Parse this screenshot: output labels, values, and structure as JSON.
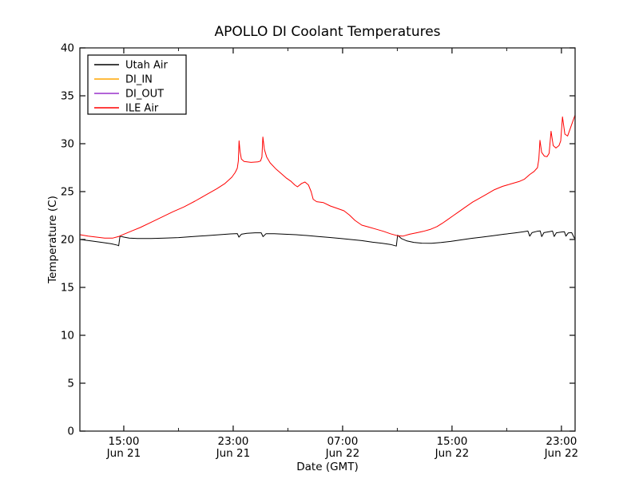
{
  "chart_data": {
    "type": "line",
    "title": "APOLLO DI Coolant Temperatures",
    "xlabel": "Date (GMT)",
    "ylabel": "Temperature (C)",
    "xlim": [
      11.79,
      48.0
    ],
    "ylim": [
      0,
      40
    ],
    "grid": false,
    "background": "#ffffff",
    "spine_color": "#1a1a1a",
    "x_unit": "hours from Jun 21 00:00 GMT",
    "x_ticks": [
      {
        "t": 15,
        "label": "15:00",
        "sub": "Jun 21"
      },
      {
        "t": 23,
        "label": "23:00",
        "sub": "Jun 21"
      },
      {
        "t": 31,
        "label": "07:00",
        "sub": "Jun 22"
      },
      {
        "t": 39,
        "label": "15:00",
        "sub": "Jun 22"
      },
      {
        "t": 47,
        "label": "23:00",
        "sub": "Jun 22"
      }
    ],
    "x_minor_ticks": [
      19,
      27,
      35,
      43
    ],
    "y_ticks": [
      0,
      5,
      10,
      15,
      20,
      25,
      30,
      35,
      40
    ],
    "legend": {
      "position": "upper-left",
      "entries": [
        {
          "label": "Utah Air",
          "color": "#000000"
        },
        {
          "label": "DI_IN",
          "color": "#ffa500"
        },
        {
          "label": "DI_OUT",
          "color": "#9932cc"
        },
        {
          "label": "ILE Air",
          "color": "#ff0000"
        }
      ]
    },
    "series": [
      {
        "name": "Utah Air",
        "color": "#000000",
        "points": [
          [
            11.8,
            20.0
          ],
          [
            12.6,
            19.85
          ],
          [
            13.4,
            19.7
          ],
          [
            14.1,
            19.55
          ],
          [
            14.55,
            19.4
          ],
          [
            14.63,
            19.35
          ],
          [
            14.72,
            20.35
          ],
          [
            15.0,
            20.25
          ],
          [
            15.4,
            20.15
          ],
          [
            16.0,
            20.1
          ],
          [
            17.0,
            20.1
          ],
          [
            18.0,
            20.15
          ],
          [
            19.0,
            20.2
          ],
          [
            20.0,
            20.3
          ],
          [
            21.0,
            20.4
          ],
          [
            22.0,
            20.5
          ],
          [
            22.8,
            20.58
          ],
          [
            23.3,
            20.62
          ],
          [
            23.42,
            20.25
          ],
          [
            23.6,
            20.55
          ],
          [
            24.0,
            20.65
          ],
          [
            24.6,
            20.7
          ],
          [
            25.05,
            20.7
          ],
          [
            25.18,
            20.3
          ],
          [
            25.4,
            20.6
          ],
          [
            26.0,
            20.6
          ],
          [
            26.8,
            20.55
          ],
          [
            27.6,
            20.5
          ],
          [
            28.4,
            20.42
          ],
          [
            29.2,
            20.32
          ],
          [
            30.0,
            20.22
          ],
          [
            30.8,
            20.12
          ],
          [
            31.6,
            20.0
          ],
          [
            32.4,
            19.88
          ],
          [
            33.2,
            19.72
          ],
          [
            33.9,
            19.6
          ],
          [
            34.5,
            19.48
          ],
          [
            34.93,
            19.32
          ],
          [
            35.02,
            20.45
          ],
          [
            35.3,
            20.1
          ],
          [
            35.7,
            19.85
          ],
          [
            36.2,
            19.7
          ],
          [
            36.8,
            19.62
          ],
          [
            37.5,
            19.6
          ],
          [
            38.2,
            19.68
          ],
          [
            38.9,
            19.8
          ],
          [
            39.6,
            19.95
          ],
          [
            40.4,
            20.12
          ],
          [
            41.2,
            20.25
          ],
          [
            42.0,
            20.4
          ],
          [
            42.8,
            20.55
          ],
          [
            43.6,
            20.68
          ],
          [
            44.2,
            20.8
          ],
          [
            44.55,
            20.88
          ],
          [
            44.68,
            20.35
          ],
          [
            44.85,
            20.72
          ],
          [
            45.2,
            20.85
          ],
          [
            45.45,
            20.9
          ],
          [
            45.56,
            20.3
          ],
          [
            45.72,
            20.72
          ],
          [
            46.1,
            20.82
          ],
          [
            46.35,
            20.88
          ],
          [
            46.47,
            20.32
          ],
          [
            46.63,
            20.7
          ],
          [
            47.0,
            20.78
          ],
          [
            47.22,
            20.82
          ],
          [
            47.33,
            20.35
          ],
          [
            47.5,
            20.68
          ],
          [
            47.75,
            20.72
          ],
          [
            48.0,
            20.0
          ]
        ]
      },
      {
        "name": "DI_IN",
        "color": "#ffa500",
        "points": []
      },
      {
        "name": "DI_OUT",
        "color": "#9932cc",
        "points": []
      },
      {
        "name": "ILE Air",
        "color": "#ff0000",
        "points": [
          [
            11.8,
            20.5
          ],
          [
            12.4,
            20.35
          ],
          [
            13.0,
            20.25
          ],
          [
            13.6,
            20.15
          ],
          [
            14.2,
            20.15
          ],
          [
            14.6,
            20.3
          ],
          [
            15.0,
            20.55
          ],
          [
            15.6,
            20.9
          ],
          [
            16.2,
            21.25
          ],
          [
            17.0,
            21.8
          ],
          [
            17.8,
            22.35
          ],
          [
            18.6,
            22.9
          ],
          [
            19.4,
            23.4
          ],
          [
            20.2,
            24.0
          ],
          [
            21.0,
            24.65
          ],
          [
            21.8,
            25.3
          ],
          [
            22.4,
            25.85
          ],
          [
            22.9,
            26.5
          ],
          [
            23.15,
            27.0
          ],
          [
            23.3,
            27.45
          ],
          [
            23.38,
            28.2
          ],
          [
            23.43,
            30.3
          ],
          [
            23.5,
            29.2
          ],
          [
            23.6,
            28.4
          ],
          [
            23.8,
            28.15
          ],
          [
            24.3,
            28.05
          ],
          [
            24.8,
            28.1
          ],
          [
            25.0,
            28.2
          ],
          [
            25.1,
            28.6
          ],
          [
            25.17,
            30.7
          ],
          [
            25.28,
            29.4
          ],
          [
            25.45,
            28.6
          ],
          [
            25.7,
            28.0
          ],
          [
            26.1,
            27.4
          ],
          [
            26.5,
            26.9
          ],
          [
            26.9,
            26.4
          ],
          [
            27.2,
            26.1
          ],
          [
            27.5,
            25.7
          ],
          [
            27.7,
            25.5
          ],
          [
            28.0,
            25.85
          ],
          [
            28.25,
            26.0
          ],
          [
            28.5,
            25.7
          ],
          [
            28.7,
            25.0
          ],
          [
            28.85,
            24.2
          ],
          [
            29.1,
            23.95
          ],
          [
            29.6,
            23.85
          ],
          [
            30.1,
            23.5
          ],
          [
            30.6,
            23.25
          ],
          [
            31.1,
            23.0
          ],
          [
            31.5,
            22.55
          ],
          [
            31.9,
            22.0
          ],
          [
            32.4,
            21.5
          ],
          [
            32.9,
            21.3
          ],
          [
            33.4,
            21.1
          ],
          [
            34.0,
            20.85
          ],
          [
            34.5,
            20.6
          ],
          [
            35.0,
            20.4
          ],
          [
            35.4,
            20.35
          ],
          [
            35.9,
            20.55
          ],
          [
            36.4,
            20.7
          ],
          [
            36.9,
            20.85
          ],
          [
            37.4,
            21.05
          ],
          [
            37.9,
            21.35
          ],
          [
            38.3,
            21.7
          ],
          [
            38.7,
            22.1
          ],
          [
            39.1,
            22.5
          ],
          [
            39.5,
            22.9
          ],
          [
            40.0,
            23.4
          ],
          [
            40.5,
            23.9
          ],
          [
            41.0,
            24.3
          ],
          [
            41.5,
            24.7
          ],
          [
            42.1,
            25.2
          ],
          [
            42.7,
            25.55
          ],
          [
            43.3,
            25.8
          ],
          [
            43.9,
            26.05
          ],
          [
            44.3,
            26.3
          ],
          [
            44.7,
            26.8
          ],
          [
            45.0,
            27.1
          ],
          [
            45.25,
            27.5
          ],
          [
            45.35,
            28.4
          ],
          [
            45.43,
            30.35
          ],
          [
            45.55,
            29.1
          ],
          [
            45.75,
            28.7
          ],
          [
            45.95,
            28.65
          ],
          [
            46.1,
            29.0
          ],
          [
            46.24,
            31.3
          ],
          [
            46.4,
            29.8
          ],
          [
            46.6,
            29.55
          ],
          [
            46.82,
            29.8
          ],
          [
            46.95,
            30.3
          ],
          [
            47.08,
            32.8
          ],
          [
            47.25,
            31.0
          ],
          [
            47.45,
            30.8
          ],
          [
            47.65,
            31.6
          ],
          [
            47.85,
            32.4
          ],
          [
            48.0,
            33.0
          ]
        ]
      }
    ]
  }
}
